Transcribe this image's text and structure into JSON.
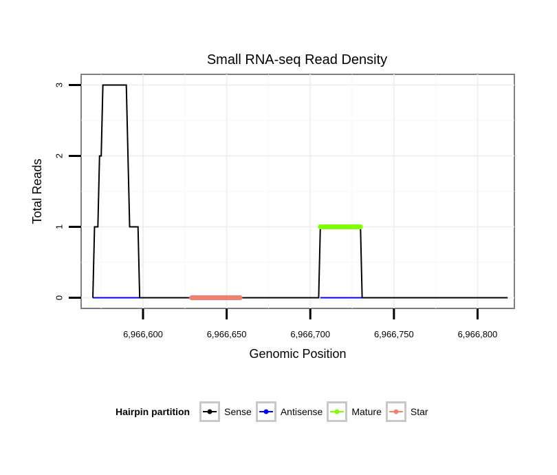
{
  "chart_data": {
    "type": "line",
    "title": "Small RNA-seq Read Density",
    "xlabel": "Genomic Position",
    "ylabel": "Total Reads",
    "xlim": [
      6966563,
      6966822
    ],
    "ylim": [
      -0.15,
      3.15
    ],
    "x_ticks": [
      6966600,
      6966650,
      6966700,
      6966750,
      6966800
    ],
    "x_tick_labels": [
      "6,966,600",
      "6,966,650",
      "6,966,700",
      "6,966,750",
      "6,966,800"
    ],
    "y_ticks": [
      0,
      1,
      2,
      3
    ],
    "y_tick_labels": [
      "0",
      "1",
      "2",
      "3"
    ],
    "grid": true,
    "legend_position": "bottom",
    "legend_title": "Hairpin partition",
    "series": [
      {
        "name": "Sense",
        "color": "#000000",
        "points": [
          [
            6966570,
            0
          ],
          [
            6966571,
            1
          ],
          [
            6966573,
            1
          ],
          [
            6966574,
            2
          ],
          [
            6966575,
            2
          ],
          [
            6966576,
            3
          ],
          [
            6966590,
            3
          ],
          [
            6966592,
            1
          ],
          [
            6966597,
            1
          ],
          [
            6966598,
            0
          ],
          [
            6966705,
            0
          ],
          [
            6966706,
            1
          ],
          [
            6966730,
            1
          ],
          [
            6966731,
            0
          ],
          [
            6966818,
            0
          ]
        ]
      },
      {
        "name": "Antisense",
        "color": "#0000ff",
        "points": [
          [
            6966570,
            0
          ],
          [
            6966598,
            0
          ],
          [
            6966706,
            0
          ],
          [
            6966731,
            0
          ]
        ]
      },
      {
        "name": "Mature",
        "color": "#7fff00",
        "points": [
          [
            6966706,
            1
          ],
          [
            6966730,
            1
          ]
        ]
      },
      {
        "name": "Star",
        "color": "#f08070",
        "points": [
          [
            6966629,
            0
          ],
          [
            6966658,
            0
          ]
        ]
      }
    ]
  }
}
